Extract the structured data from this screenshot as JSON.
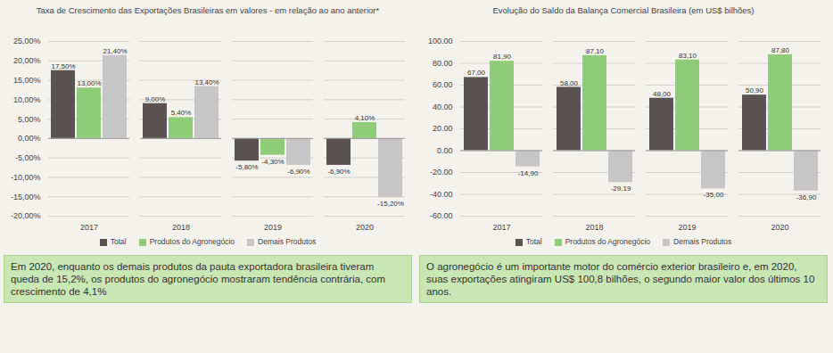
{
  "chart_data": [
    {
      "type": "bar",
      "title": "Taxa de Crescimento das Exportações Brasileiras em valores - em relação ao ano anterior*",
      "categories": [
        "2017",
        "2018",
        "2019",
        "2020"
      ],
      "series": [
        {
          "name": "Total",
          "color": "#5b5252",
          "values": [
            17.5,
            9.0,
            -5.8,
            -6.9
          ],
          "value_labels": [
            "17,50%",
            "9,00%",
            "-5,80%",
            "-6,90%"
          ]
        },
        {
          "name": "Produtos do Agronegócio",
          "color": "#8fcc78",
          "values": [
            13.0,
            5.4,
            -4.3,
            4.1
          ],
          "value_labels": [
            "13,00%",
            "5,40%",
            "-4,30%",
            "4,10%"
          ]
        },
        {
          "name": "Demais Produtos",
          "color": "#c6c6c6",
          "values": [
            21.4,
            13.4,
            -6.9,
            -15.2
          ],
          "value_labels": [
            "21,40%",
            "13,40%",
            "-6,90%",
            "-15,20%"
          ]
        }
      ],
      "ylim": [
        -20,
        25
      ],
      "yticks": [
        {
          "value": -20,
          "label": "-20,00%"
        },
        {
          "value": -15,
          "label": "-15,00%"
        },
        {
          "value": -10,
          "label": "-10,00%"
        },
        {
          "value": -5,
          "label": "-5,00%"
        },
        {
          "value": 0,
          "label": "0,00%"
        },
        {
          "value": 5,
          "label": "5,00%"
        },
        {
          "value": 10,
          "label": "10,00%"
        },
        {
          "value": 15,
          "label": "15,00%"
        },
        {
          "value": 20,
          "label": "20,00%"
        },
        {
          "value": 25,
          "label": "25,00%"
        }
      ],
      "grid": true,
      "legend": "bottom",
      "data_labels": true,
      "annotations": [
        "Em 2020, enquanto os demais produtos da pauta exportadora brasileira tiveram queda de 15,2%, os produtos do agronegócio mostraram tendência contrária, com crescimento de 4,1%"
      ]
    },
    {
      "type": "bar",
      "title": "Evolução do Saldo da Balança Comercial Brasileira (em US$ bilhões)",
      "categories": [
        "2017",
        "2018",
        "2019",
        "2020"
      ],
      "series": [
        {
          "name": "Total",
          "color": "#5b5252",
          "values": [
            67.0,
            58.0,
            48.0,
            50.9
          ],
          "value_labels": [
            "67,00",
            "58,00",
            "48,00",
            "50,90"
          ]
        },
        {
          "name": "Produtos do Agronegócio",
          "color": "#8fcc78",
          "values": [
            81.9,
            87.1,
            83.1,
            87.8
          ],
          "value_labels": [
            "81,90",
            "87,10",
            "83,10",
            "87,80"
          ]
        },
        {
          "name": "Demais Produtos",
          "color": "#c6c6c6",
          "values": [
            -14.9,
            -29.19,
            -35.0,
            -36.9
          ],
          "value_labels": [
            "-14,90",
            "-29,19",
            "-35,00",
            "-36,90"
          ]
        }
      ],
      "ylim": [
        -60,
        100
      ],
      "yticks": [
        {
          "value": -60,
          "label": "-60.00"
        },
        {
          "value": -40,
          "label": "-40.00"
        },
        {
          "value": -20,
          "label": "-20.00"
        },
        {
          "value": 0,
          "label": "0.00"
        },
        {
          "value": 20,
          "label": "20.00"
        },
        {
          "value": 40,
          "label": "40.00"
        },
        {
          "value": 60,
          "label": "60.00"
        },
        {
          "value": 80,
          "label": "80.00"
        },
        {
          "value": 100,
          "label": "100.00"
        }
      ],
      "grid": true,
      "legend": "bottom",
      "data_labels": true,
      "annotations": [
        "O agronegócio é um importante motor do comércio exterior brasileiro e, em 2020, suas exportações atingiram US$ 100,8 bilhões, o segundo maior valor dos últimos 10 anos."
      ]
    }
  ]
}
